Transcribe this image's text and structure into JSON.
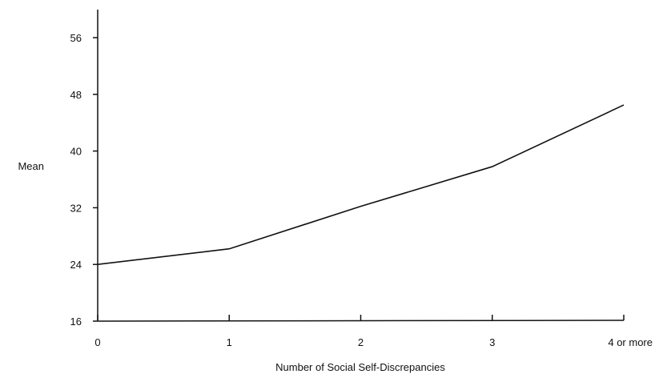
{
  "chart_data": {
    "type": "line",
    "title": "",
    "xlabel": "Number of Social Self-Discrepancies",
    "ylabel": "Mean",
    "categories": [
      "0",
      "1",
      "2",
      "3",
      "4 or more"
    ],
    "series": [
      {
        "values": [
          24,
          26.2,
          32.2,
          37.8,
          46.5
        ]
      }
    ],
    "y_ticks": [
      16,
      24,
      32,
      40,
      48,
      56
    ],
    "ylim": [
      16,
      59.5
    ],
    "grid": false,
    "legend": "none",
    "colors": {
      "line": "#111111",
      "axis": "#111111"
    }
  }
}
